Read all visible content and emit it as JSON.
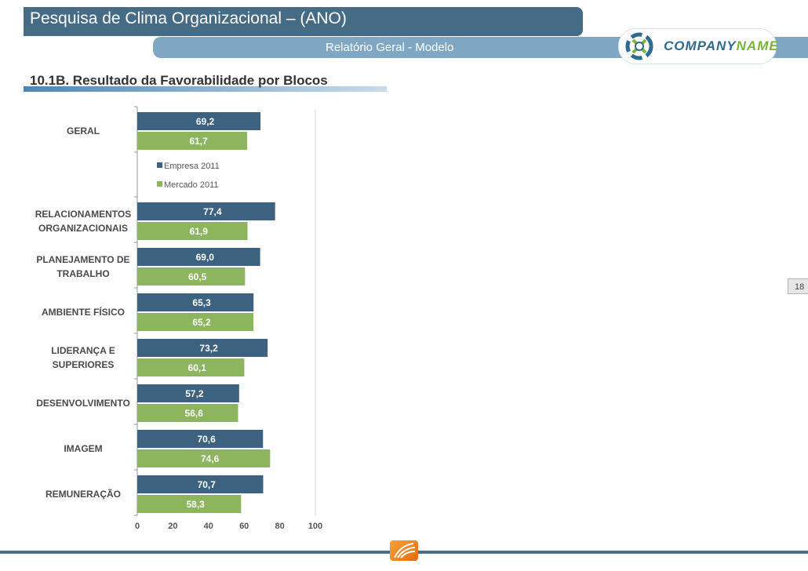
{
  "header": {
    "title": "Pesquisa de Clima Organizacional – (ANO)",
    "subtitle": "Relatório Geral - Modelo",
    "logo": {
      "part1": "COMPANY",
      "part2": "NAME"
    },
    "page_number": "18"
  },
  "section_title": "10.1B. Resultado da Favorabilidade por Blocos",
  "colors": {
    "empresa": "#3d6280",
    "mercado": "#8db55d",
    "header_dark": "#466b84",
    "header_light": "#7fa6c2"
  },
  "chart_data": {
    "type": "bar",
    "orientation": "horizontal",
    "categories": [
      [
        "GERAL"
      ],
      [
        "RELACIONAMENTOS",
        "ORGANIZACIONAIS"
      ],
      [
        "PLANEJAMENTO DE",
        "TRABALHO"
      ],
      [
        "AMBIENTE FÍSICO"
      ],
      [
        "LIDERANÇA E",
        "SUPERIORES"
      ],
      [
        "DESENVOLVIMENTO"
      ],
      [
        "IMAGEM"
      ],
      [
        "REMUNERAÇÃO"
      ]
    ],
    "series": [
      {
        "name": "Empresa 2011",
        "values": [
          69.2,
          77.4,
          69.0,
          65.3,
          73.2,
          57.2,
          70.6,
          70.7
        ],
        "labels": [
          "69,2",
          "77,4",
          "69,0",
          "65,3",
          "73,2",
          "57,2",
          "70,6",
          "70,7"
        ]
      },
      {
        "name": "Mercado 2011",
        "values": [
          61.7,
          61.9,
          60.5,
          65.2,
          60.1,
          56.6,
          74.6,
          58.3
        ],
        "labels": [
          "61,7",
          "61,9",
          "60,5",
          "65,2",
          "60,1",
          "56,6",
          "74,6",
          "58,3"
        ]
      }
    ],
    "xlim": [
      0,
      100
    ],
    "xticks": [
      "0",
      "20",
      "40",
      "60",
      "80",
      "100"
    ],
    "legend_placement": "inside-top",
    "grid": false
  }
}
